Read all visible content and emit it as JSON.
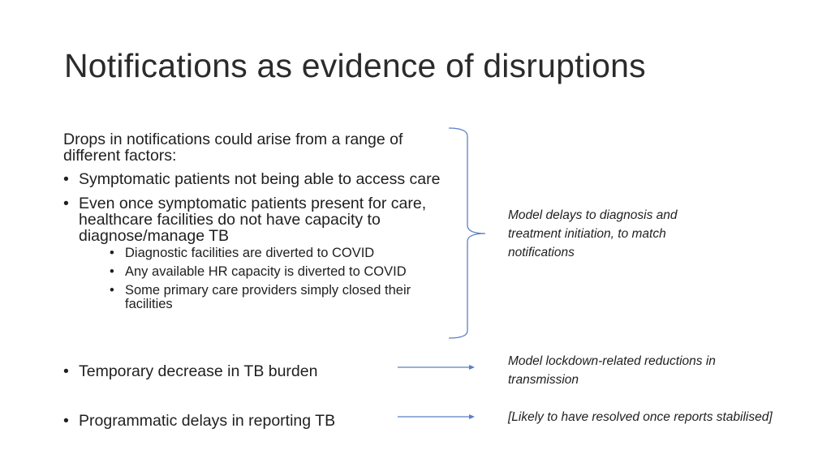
{
  "slide": {
    "title": "Notifications as evidence of disruptions",
    "intro": "Drops in notifications could arise from a range of different factors:",
    "bullets": [
      "Symptomatic patients not being able to access care",
      "Even once symptomatic patients present for care, healthcare facilities do not have capacity to diagnose/manage TB"
    ],
    "sub_bullets": [
      "Diagnostic facilities are diverted to COVID",
      "Any available HR capacity is diverted to COVID",
      "Some primary care providers simply closed their facilities"
    ],
    "bullet_burden": "Temporary decrease in TB burden",
    "bullet_reporting": "Programmatic delays in reporting TB",
    "note_delays": "Model delays to diagnosis and treatment initiation, to match notifications",
    "note_lockdown": "Model lockdown-related reductions in transmission",
    "note_resolved": "[Likely to have resolved once reports stabilised]",
    "connector_color": "#5b7fc7"
  }
}
